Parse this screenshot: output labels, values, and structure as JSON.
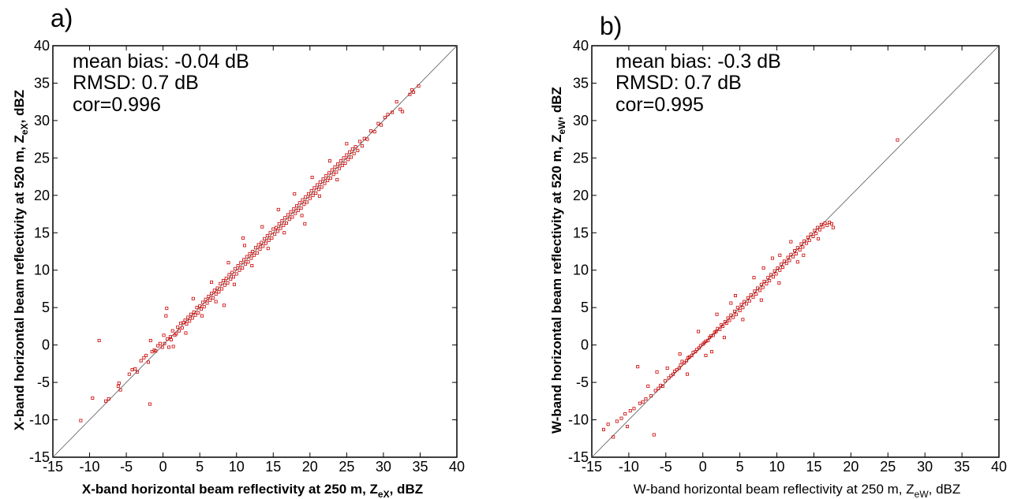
{
  "chart_data": [
    {
      "type": "scatter",
      "panel_label": "a)",
      "xlabel": {
        "prefix": "X-band horizontal beam reflectivity at 250 m, Z",
        "sub": "eX",
        "suffix": ", dBZ"
      },
      "ylabel": {
        "prefix": "X-band horizontal beam reflectivity at 520 m, Z",
        "sub": "eX",
        "suffix": ", dBZ"
      },
      "xlim": [
        -15,
        40
      ],
      "ylim": [
        -15,
        40
      ],
      "xticks": [
        "-15",
        "-10",
        "-5",
        "0",
        "5",
        "10",
        "15",
        "20",
        "25",
        "30",
        "35",
        "40"
      ],
      "yticks": [
        "-15",
        "-10",
        "-5",
        "0",
        "5",
        "10",
        "15",
        "20",
        "25",
        "30",
        "35",
        "40"
      ],
      "annotations": [
        "mean bias: -0.04 dB",
        "RMSD: 0.7 dB",
        "cor=0.996"
      ],
      "reference_line": {
        "slope": 1,
        "intercept": 0
      },
      "marker_color": "#cc0000",
      "line_color": "#555555",
      "axis_label_weight": "bold",
      "points": [
        [
          -11.2,
          -10.1
        ],
        [
          -9.6,
          -7.1
        ],
        [
          -8.7,
          0.6
        ],
        [
          -7.8,
          -7.5
        ],
        [
          -7.4,
          -7.2
        ],
        [
          -6.1,
          -5.5
        ],
        [
          -6.0,
          -5.1
        ],
        [
          -5.8,
          -6.0
        ],
        [
          -4.6,
          -3.9
        ],
        [
          -4.2,
          -3.3
        ],
        [
          -3.8,
          -3.2
        ],
        [
          -3.5,
          -3.6
        ],
        [
          -3.0,
          -2.1
        ],
        [
          -2.6,
          -1.7
        ],
        [
          -2.3,
          -1.4
        ],
        [
          -2.0,
          -2.3
        ],
        [
          -1.8,
          -7.9
        ],
        [
          -1.7,
          0.6
        ],
        [
          -1.5,
          -0.9
        ],
        [
          -1.2,
          -0.7
        ],
        [
          -1.0,
          -0.8
        ],
        [
          -0.7,
          -0.1
        ],
        [
          -0.4,
          0.2
        ],
        [
          -0.1,
          -0.3
        ],
        [
          0.1,
          1.3
        ],
        [
          0.2,
          0.2
        ],
        [
          0.4,
          3.9
        ],
        [
          0.5,
          4.9
        ],
        [
          0.6,
          0.8
        ],
        [
          0.8,
          -0.3
        ],
        [
          1.0,
          1.1
        ],
        [
          1.1,
          0.7
        ],
        [
          1.3,
          1.9
        ],
        [
          1.4,
          -0.2
        ],
        [
          1.6,
          1.3
        ],
        [
          1.8,
          1.5
        ],
        [
          2.0,
          2.4
        ],
        [
          2.2,
          1.9
        ],
        [
          2.4,
          2.9
        ],
        [
          2.6,
          2.3
        ],
        [
          2.8,
          3.0
        ],
        [
          3.0,
          3.3
        ],
        [
          3.2,
          2.8
        ],
        [
          3.4,
          3.7
        ],
        [
          3.6,
          3.2
        ],
        [
          3.8,
          4.1
        ],
        [
          4.0,
          3.6
        ],
        [
          4.2,
          4.4
        ],
        [
          4.4,
          4.0
        ],
        [
          4.6,
          5.0
        ],
        [
          4.8,
          4.3
        ],
        [
          5.0,
          5.2
        ],
        [
          5.2,
          4.8
        ],
        [
          5.4,
          5.7
        ],
        [
          5.6,
          5.1
        ],
        [
          5.8,
          6.1
        ],
        [
          6.0,
          5.6
        ],
        [
          6.2,
          6.5
        ],
        [
          6.4,
          6.0
        ],
        [
          6.6,
          6.9
        ],
        [
          6.8,
          6.3
        ],
        [
          7.0,
          7.3
        ],
        [
          7.2,
          6.8
        ],
        [
          7.4,
          7.6
        ],
        [
          7.6,
          7.1
        ],
        [
          7.8,
          8.2
        ],
        [
          8.0,
          7.5
        ],
        [
          8.2,
          8.6
        ],
        [
          8.4,
          8.0
        ],
        [
          8.6,
          8.9
        ],
        [
          8.8,
          8.3
        ],
        [
          9.0,
          9.4
        ],
        [
          9.2,
          8.8
        ],
        [
          9.4,
          9.7
        ],
        [
          9.6,
          9.1
        ],
        [
          9.8,
          10.2
        ],
        [
          10.0,
          9.5
        ],
        [
          10.2,
          10.6
        ],
        [
          10.4,
          10.0
        ],
        [
          10.6,
          11.0
        ],
        [
          10.8,
          10.3
        ],
        [
          11.0,
          11.4
        ],
        [
          11.2,
          10.8
        ],
        [
          11.4,
          11.8
        ],
        [
          11.6,
          11.1
        ],
        [
          11.8,
          12.2
        ],
        [
          12.0,
          11.6
        ],
        [
          12.2,
          12.5
        ],
        [
          12.4,
          12.0
        ],
        [
          12.6,
          13.0
        ],
        [
          12.8,
          12.3
        ],
        [
          13.0,
          13.4
        ],
        [
          13.2,
          12.8
        ],
        [
          13.4,
          13.7
        ],
        [
          13.6,
          13.2
        ],
        [
          13.8,
          14.2
        ],
        [
          14.0,
          13.6
        ],
        [
          14.2,
          14.6
        ],
        [
          14.4,
          14.0
        ],
        [
          14.6,
          15.0
        ],
        [
          14.8,
          14.3
        ],
        [
          15.0,
          15.5
        ],
        [
          15.2,
          14.8
        ],
        [
          15.4,
          15.7
        ],
        [
          15.6,
          15.2
        ],
        [
          15.8,
          16.2
        ],
        [
          16.0,
          15.6
        ],
        [
          16.2,
          16.6
        ],
        [
          16.4,
          16.0
        ],
        [
          16.6,
          17.0
        ],
        [
          16.8,
          16.3
        ],
        [
          17.0,
          17.4
        ],
        [
          17.2,
          16.8
        ],
        [
          17.4,
          17.8
        ],
        [
          17.6,
          17.1
        ],
        [
          17.8,
          18.2
        ],
        [
          18.0,
          17.6
        ],
        [
          18.2,
          18.6
        ],
        [
          18.4,
          18.0
        ],
        [
          18.6,
          19.0
        ],
        [
          18.8,
          18.3
        ],
        [
          19.0,
          19.4
        ],
        [
          19.2,
          18.8
        ],
        [
          19.4,
          19.8
        ],
        [
          19.6,
          19.1
        ],
        [
          19.8,
          20.2
        ],
        [
          20.0,
          19.6
        ],
        [
          20.2,
          20.6
        ],
        [
          20.4,
          20.0
        ],
        [
          20.6,
          21.0
        ],
        [
          20.8,
          20.3
        ],
        [
          21.0,
          21.4
        ],
        [
          21.2,
          20.8
        ],
        [
          21.4,
          21.8
        ],
        [
          21.6,
          21.1
        ],
        [
          21.8,
          22.2
        ],
        [
          22.0,
          21.6
        ],
        [
          22.2,
          22.6
        ],
        [
          22.4,
          22.0
        ],
        [
          22.6,
          23.0
        ],
        [
          22.8,
          22.3
        ],
        [
          23.0,
          23.4
        ],
        [
          23.2,
          22.8
        ],
        [
          23.4,
          23.8
        ],
        [
          23.6,
          23.1
        ],
        [
          23.8,
          24.2
        ],
        [
          24.0,
          23.6
        ],
        [
          24.2,
          24.6
        ],
        [
          24.4,
          24.0
        ],
        [
          24.6,
          25.0
        ],
        [
          24.8,
          24.3
        ],
        [
          25.0,
          25.4
        ],
        [
          25.2,
          24.8
        ],
        [
          25.4,
          25.8
        ],
        [
          25.6,
          25.1
        ],
        [
          25.8,
          26.2
        ],
        [
          26.0,
          25.6
        ],
        [
          26.2,
          26.5
        ],
        [
          26.5,
          26.0
        ],
        [
          26.8,
          27.2
        ],
        [
          27.1,
          26.6
        ],
        [
          27.4,
          27.6
        ],
        [
          27.8,
          27.5
        ],
        [
          28.3,
          28.6
        ],
        [
          28.8,
          28.5
        ],
        [
          29.3,
          29.6
        ],
        [
          29.7,
          29.4
        ],
        [
          30.2,
          30.4
        ],
        [
          30.6,
          30.8
        ],
        [
          31.2,
          31.1
        ],
        [
          31.8,
          32.5
        ],
        [
          32.3,
          31.5
        ],
        [
          32.6,
          31.2
        ],
        [
          33.6,
          33.5
        ],
        [
          33.9,
          34.1
        ],
        [
          34.1,
          33.8
        ],
        [
          34.8,
          34.6
        ],
        [
          3.1,
          1.6
        ],
        [
          5.3,
          3.9
        ],
        [
          7.2,
          5.8
        ],
        [
          9.7,
          8.1
        ],
        [
          12.1,
          10.6
        ],
        [
          14.3,
          12.9
        ],
        [
          16.5,
          15.0
        ],
        [
          18.9,
          17.3
        ],
        [
          21.3,
          19.9
        ],
        [
          23.7,
          22.1
        ],
        [
          4.1,
          6.2
        ],
        [
          6.6,
          8.4
        ],
        [
          8.9,
          11.0
        ],
        [
          11.1,
          13.3
        ],
        [
          13.5,
          15.8
        ],
        [
          15.7,
          18.1
        ],
        [
          17.9,
          20.2
        ],
        [
          20.3,
          22.4
        ],
        [
          22.7,
          24.6
        ],
        [
          25.0,
          26.9
        ],
        [
          8.3,
          5.3
        ],
        [
          19.3,
          16.2
        ],
        [
          10.9,
          14.3
        ]
      ]
    },
    {
      "type": "scatter",
      "panel_label": "b)",
      "xlabel": {
        "prefix": "W-band horizontal beam reflectivity at 250 m, Z",
        "sub": "eW",
        "suffix": ", dBZ"
      },
      "ylabel": {
        "prefix": "W-band horizontal beam reflectivity at 520 m, Z",
        "sub": "eW",
        "suffix": ", dBZ"
      },
      "xlim": [
        -15,
        40
      ],
      "ylim": [
        -15,
        40
      ],
      "xticks": [
        "-15",
        "-10",
        "-5",
        "0",
        "5",
        "10",
        "15",
        "20",
        "25",
        "30",
        "35",
        "40"
      ],
      "yticks": [
        "-15",
        "-10",
        "-5",
        "0",
        "5",
        "10",
        "15",
        "20",
        "25",
        "30",
        "35",
        "40"
      ],
      "annotations": [
        "mean bias: -0.3 dB",
        "RMSD: 0.7 dB",
        "cor=0.995"
      ],
      "reference_line": {
        "slope": 1,
        "intercept": 0
      },
      "marker_color": "#cc0000",
      "line_color": "#555555",
      "xlabel_weight": "normal",
      "ylabel_weight": "bold",
      "points": [
        [
          -13.4,
          -11.3
        ],
        [
          -12.8,
          -10.6
        ],
        [
          -12.1,
          -12.3
        ],
        [
          -11.6,
          -10.2
        ],
        [
          -11.0,
          -9.8
        ],
        [
          -10.5,
          -9.2
        ],
        [
          -10.2,
          -10.9
        ],
        [
          -9.8,
          -8.8
        ],
        [
          -9.3,
          -8.5
        ],
        [
          -8.8,
          -2.9
        ],
        [
          -8.5,
          -7.8
        ],
        [
          -8.1,
          -7.6
        ],
        [
          -7.7,
          -7.2
        ],
        [
          -7.4,
          -5.5
        ],
        [
          -7.0,
          -6.8
        ],
        [
          -6.6,
          -12.0
        ],
        [
          -6.4,
          -6.1
        ],
        [
          -6.2,
          -3.6
        ],
        [
          -6.0,
          -5.8
        ],
        [
          -5.7,
          -5.4
        ],
        [
          -5.4,
          -5.5
        ],
        [
          -5.1,
          -4.8
        ],
        [
          -4.8,
          -3.1
        ],
        [
          -4.6,
          -4.4
        ],
        [
          -4.3,
          -4.1
        ],
        [
          -4.0,
          -3.9
        ],
        [
          -3.8,
          -3.5
        ],
        [
          -3.5,
          -3.3
        ],
        [
          -3.2,
          -3.1
        ],
        [
          -3.0,
          -2.7
        ],
        [
          -2.8,
          -2.2
        ],
        [
          -2.5,
          -2.4
        ],
        [
          -2.2,
          -2.1
        ],
        [
          -2.0,
          -1.7
        ],
        [
          -1.8,
          -1.6
        ],
        [
          -1.5,
          -1.4
        ],
        [
          -1.3,
          -1.0
        ],
        [
          -1.0,
          -0.9
        ],
        [
          -0.8,
          -0.6
        ],
        [
          -0.5,
          -0.4
        ],
        [
          -0.3,
          -0.1
        ],
        [
          0.0,
          0.1
        ],
        [
          0.2,
          0.3
        ],
        [
          0.4,
          0.5
        ],
        [
          0.7,
          0.6
        ],
        [
          0.9,
          1.0
        ],
        [
          1.1,
          1.2
        ],
        [
          1.4,
          1.3
        ],
        [
          1.6,
          1.7
        ],
        [
          1.8,
          1.8
        ],
        [
          2.0,
          2.2
        ],
        [
          2.3,
          2.1
        ],
        [
          2.5,
          2.7
        ],
        [
          2.7,
          2.5
        ],
        [
          3.0,
          3.1
        ],
        [
          3.2,
          2.9
        ],
        [
          3.4,
          3.6
        ],
        [
          3.6,
          3.3
        ],
        [
          3.8,
          4.0
        ],
        [
          4.1,
          3.7
        ],
        [
          4.3,
          4.5
        ],
        [
          4.5,
          4.1
        ],
        [
          4.7,
          5.0
        ],
        [
          5.0,
          4.6
        ],
        [
          5.2,
          5.4
        ],
        [
          5.4,
          5.0
        ],
        [
          5.6,
          5.8
        ],
        [
          5.9,
          5.5
        ],
        [
          6.1,
          6.3
        ],
        [
          6.3,
          5.9
        ],
        [
          6.5,
          6.7
        ],
        [
          6.8,
          6.4
        ],
        [
          7.0,
          7.2
        ],
        [
          7.2,
          6.8
        ],
        [
          7.4,
          7.6
        ],
        [
          7.7,
          7.3
        ],
        [
          7.9,
          8.1
        ],
        [
          8.1,
          7.7
        ],
        [
          8.3,
          8.5
        ],
        [
          8.6,
          8.2
        ],
        [
          8.8,
          9.0
        ],
        [
          9.0,
          8.6
        ],
        [
          9.2,
          9.4
        ],
        [
          9.5,
          9.1
        ],
        [
          9.7,
          9.9
        ],
        [
          9.9,
          9.5
        ],
        [
          10.1,
          10.3
        ],
        [
          10.4,
          10.0
        ],
        [
          10.6,
          10.8
        ],
        [
          10.8,
          10.4
        ],
        [
          11.0,
          11.2
        ],
        [
          11.3,
          10.9
        ],
        [
          11.5,
          11.7
        ],
        [
          11.7,
          11.3
        ],
        [
          11.9,
          12.1
        ],
        [
          12.2,
          11.8
        ],
        [
          12.4,
          12.6
        ],
        [
          12.6,
          12.2
        ],
        [
          12.8,
          13.0
        ],
        [
          13.1,
          12.7
        ],
        [
          13.3,
          13.5
        ],
        [
          13.5,
          13.1
        ],
        [
          13.7,
          13.9
        ],
        [
          14.0,
          13.6
        ],
        [
          14.2,
          14.4
        ],
        [
          14.4,
          14.0
        ],
        [
          14.6,
          14.8
        ],
        [
          14.9,
          14.5
        ],
        [
          15.1,
          15.3
        ],
        [
          15.3,
          14.9
        ],
        [
          15.5,
          15.7
        ],
        [
          15.8,
          15.4
        ],
        [
          16.0,
          16.1
        ],
        [
          16.2,
          15.8
        ],
        [
          16.5,
          16.3
        ],
        [
          16.8,
          16.0
        ],
        [
          17.1,
          16.4
        ],
        [
          17.4,
          16.2
        ],
        [
          17.6,
          15.7
        ],
        [
          26.3,
          27.4
        ],
        [
          -3.1,
          -1.2
        ],
        [
          -0.6,
          1.8
        ],
        [
          1.9,
          4.1
        ],
        [
          4.4,
          6.6
        ],
        [
          6.9,
          9.0
        ],
        [
          9.4,
          11.6
        ],
        [
          11.9,
          13.8
        ],
        [
          3.8,
          5.6
        ],
        [
          8.2,
          10.3
        ],
        [
          10.4,
          12.0
        ],
        [
          -2.1,
          -3.9
        ],
        [
          0.4,
          -1.4
        ],
        [
          2.9,
          1.0
        ],
        [
          5.4,
          3.4
        ],
        [
          7.9,
          6.0
        ],
        [
          10.3,
          8.3
        ],
        [
          12.8,
          11.1
        ],
        [
          1.2,
          -0.9
        ],
        [
          13.6,
          12.0
        ],
        [
          15.6,
          14.2
        ]
      ]
    }
  ]
}
